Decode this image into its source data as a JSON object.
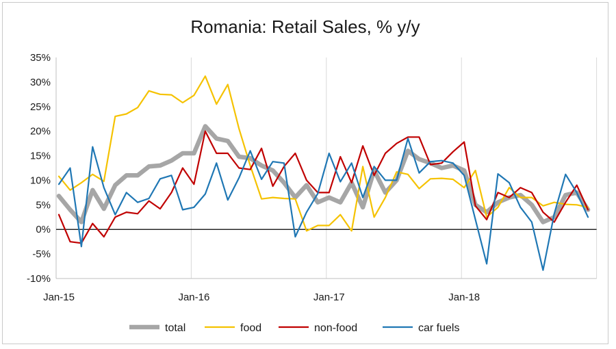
{
  "chart_data": {
    "type": "line",
    "title": "Romania: Retail Sales, % y/y",
    "xlabel": "",
    "ylabel": "",
    "ylim": [
      -10,
      35
    ],
    "yticks": [
      -10,
      -5,
      0,
      5,
      10,
      15,
      20,
      25,
      30,
      35
    ],
    "ytick_labels": [
      "-10%",
      "-5%",
      "0%",
      "5%",
      "10%",
      "15%",
      "20%",
      "25%",
      "30%",
      "35%"
    ],
    "xtick_labels": [
      "Jan-15",
      "Jan-16",
      "Jan-17",
      "Jan-18"
    ],
    "x_start": "Jan-15",
    "x_end": "Dec-18",
    "grid": "vertical",
    "legend_position": "bottom",
    "series": [
      {
        "name": "total",
        "color": "#a6a6a6",
        "width": 6.5,
        "values": [
          6.8,
          4,
          1.5,
          8,
          4.2,
          9,
          11,
          11,
          12.8,
          13,
          14,
          15.5,
          15.5,
          21,
          18.5,
          18,
          14.8,
          14.5,
          13,
          12,
          9.5,
          6.5,
          9,
          5.5,
          6.5,
          5.5,
          9.5,
          4.5,
          12,
          7.5,
          10,
          16,
          14.3,
          13.5,
          12.5,
          13,
          12,
          5,
          3.5,
          5.5,
          6.5,
          7,
          5,
          1.5,
          2.5,
          7,
          7.5,
          4
        ]
      },
      {
        "name": "food",
        "color": "#f5c200",
        "width": 2.2,
        "values": [
          10.8,
          8,
          9.5,
          11.2,
          9.8,
          23,
          23.5,
          24.8,
          28.2,
          27.5,
          27.4,
          25.8,
          27.3,
          31.2,
          25.5,
          29.5,
          20.5,
          13,
          6.2,
          6.5,
          6.3,
          6.2,
          -0.3,
          0.8,
          0.8,
          3,
          -0.3,
          12.8,
          2.5,
          6.5,
          11.7,
          11.2,
          8.3,
          10.3,
          10.4,
          10.2,
          8.5,
          12,
          2.5,
          4.5,
          8.5,
          6.5,
          6.5,
          4.8,
          5.5,
          5.1,
          5,
          4.5
        ]
      },
      {
        "name": "non-food",
        "color": "#c00000",
        "width": 2.2,
        "values": [
          3,
          -2.5,
          -2.8,
          1.2,
          -1.5,
          2.5,
          3.5,
          3.2,
          5.8,
          4.2,
          7.5,
          12.5,
          9.2,
          20,
          15.5,
          15.5,
          12.5,
          12.2,
          16.5,
          8.8,
          12.8,
          15.5,
          10,
          7.5,
          7.5,
          14.8,
          9.5,
          17,
          11,
          15.5,
          17.5,
          18.8,
          18.8,
          13.2,
          13.5,
          15.8,
          17.8,
          4.8,
          2,
          7.5,
          6.5,
          8.5,
          7.5,
          3.5,
          1.5,
          5.5,
          9,
          4
        ]
      },
      {
        "name": "car fuels",
        "color": "#1f77b4",
        "width": 2.2,
        "values": [
          9.2,
          12.5,
          -3.5,
          16.8,
          8.5,
          3,
          7.5,
          5.5,
          6.3,
          10.3,
          11,
          4,
          4.5,
          7.2,
          13.5,
          6,
          10.5,
          16,
          10.2,
          13.8,
          13.5,
          -1.5,
          3.5,
          7.3,
          15.5,
          9.7,
          13.5,
          6.5,
          12.8,
          10,
          10,
          18.5,
          11.5,
          13.8,
          14,
          13.5,
          11,
          2,
          -7,
          11.3,
          9.5,
          4.5,
          1.5,
          -8.3,
          3.2,
          11.2,
          7.5,
          2.5
        ]
      }
    ]
  }
}
